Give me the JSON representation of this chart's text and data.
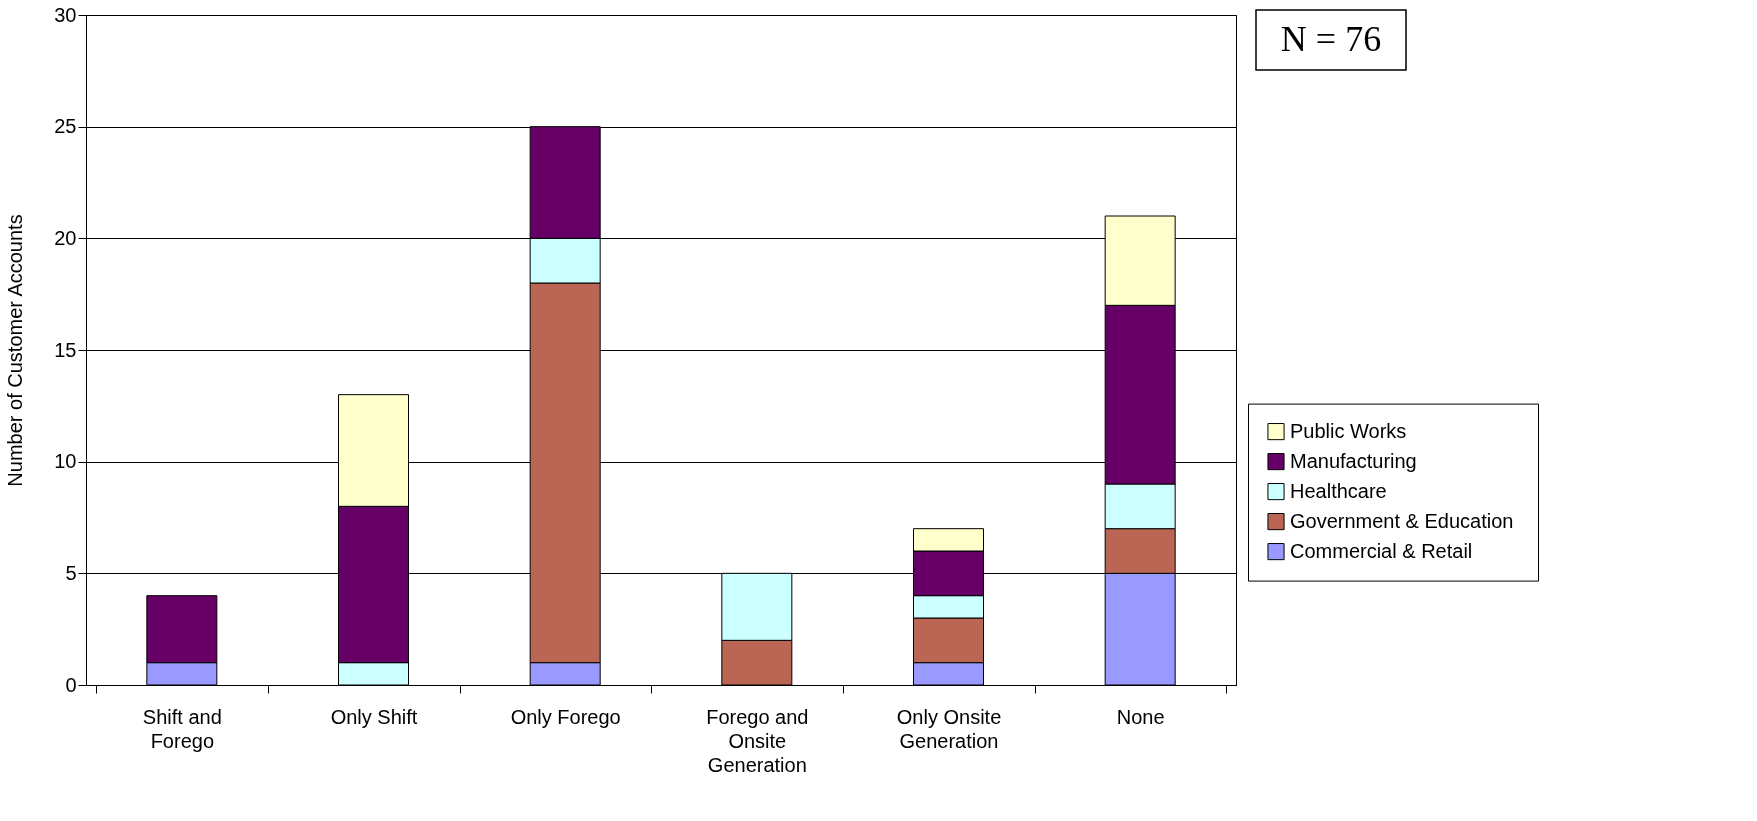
{
  "chart_data": {
    "type": "bar",
    "stacked": true,
    "ylabel": "Number of Customer Accounts",
    "categories": [
      "Shift and Forego",
      "Only Shift",
      "Only Forego",
      "Forego and Onsite Generation",
      "Only Onsite Generation",
      "None"
    ],
    "series": [
      {
        "name": "Commercial & Retail",
        "color": "#9999ff",
        "values": [
          1,
          0,
          1,
          0,
          1,
          5
        ]
      },
      {
        "name": "Government &  Education",
        "color": "#bb6655",
        "values": [
          0,
          0,
          17,
          2,
          2,
          2
        ]
      },
      {
        "name": "Healthcare",
        "color": "#ccffff",
        "values": [
          0,
          1,
          2,
          3,
          1,
          2
        ]
      },
      {
        "name": "Manufacturing",
        "color": "#660066",
        "values": [
          3,
          7,
          5,
          0,
          2,
          8
        ]
      },
      {
        "name": "Public Works",
        "color": "#ffffcc",
        "values": [
          0,
          5,
          0,
          0,
          1,
          4
        ]
      }
    ],
    "ylim": [
      0,
      30
    ],
    "yticks": [
      0,
      5,
      10,
      15,
      20,
      25,
      30
    ],
    "grid": "y",
    "legend": "right",
    "annotations": [
      "N = 76"
    ]
  }
}
